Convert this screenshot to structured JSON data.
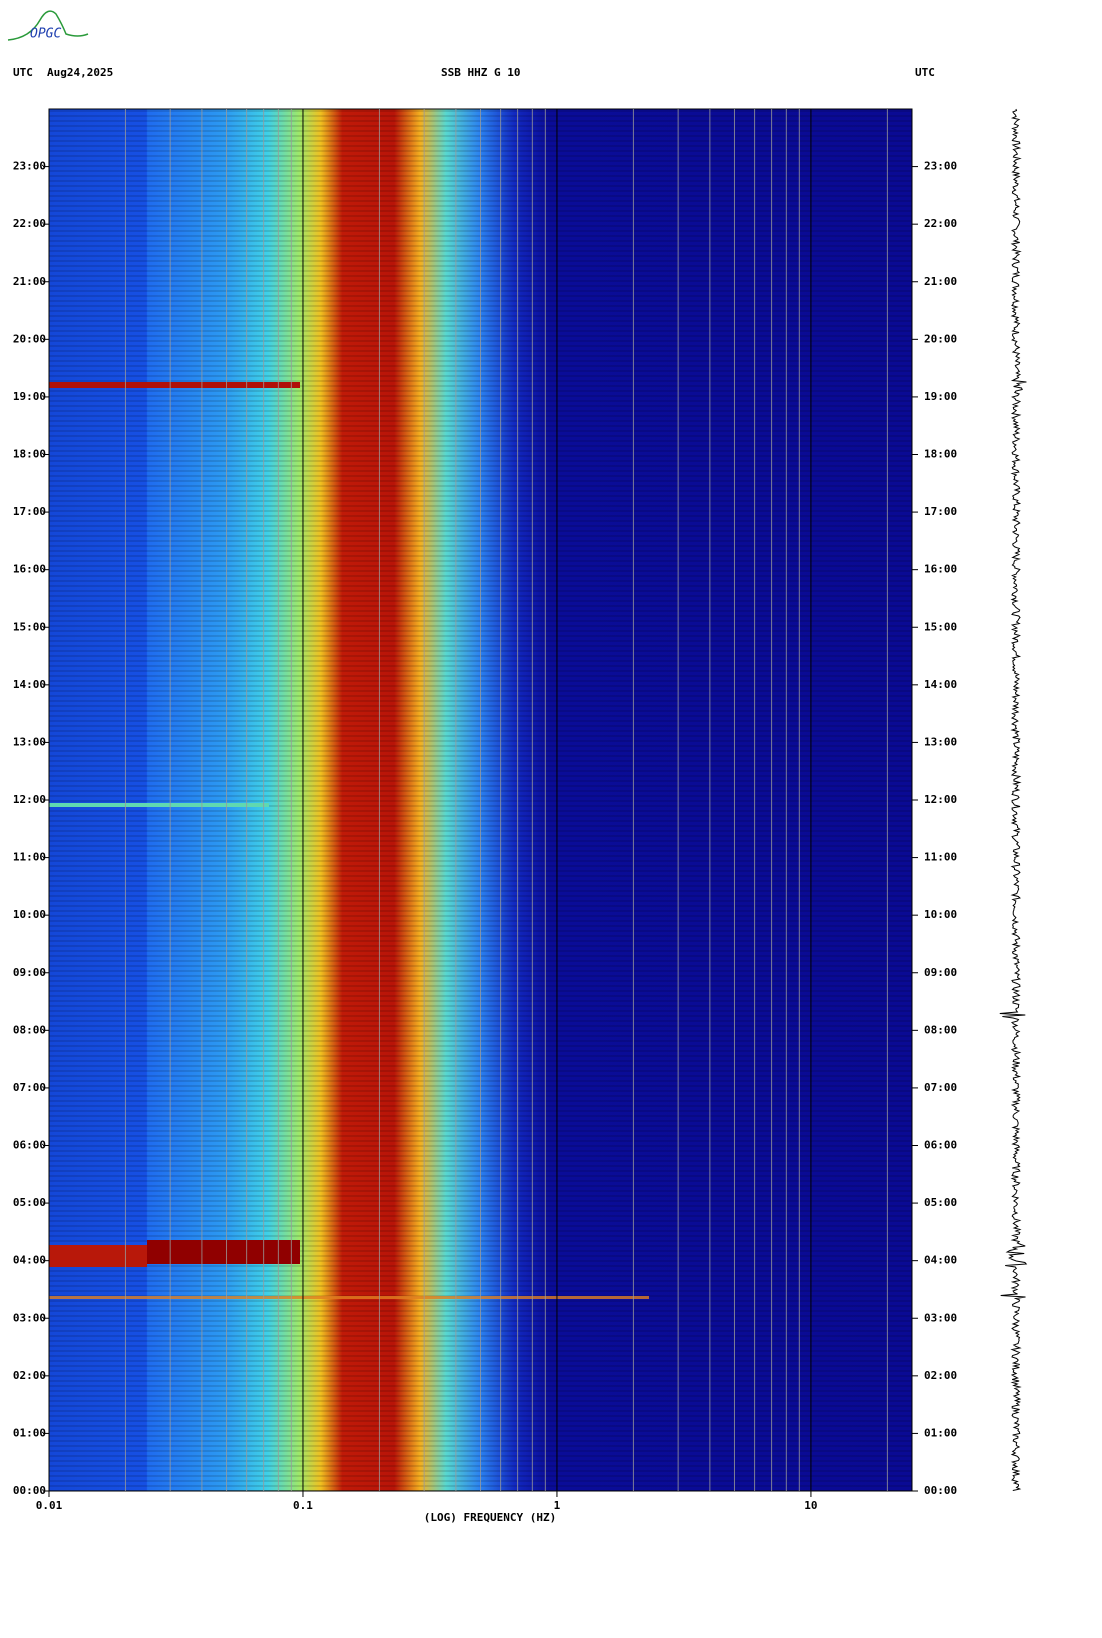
{
  "logo": "OPGC",
  "header": {
    "left": "UTC",
    "date": "Aug24,2025",
    "right": "UTC"
  },
  "chart_data": {
    "type": "spectrogram",
    "title": "SSB HHZ G 10",
    "xlabel": "(LOG) FREQUENCY (HZ)",
    "xscale": "log",
    "xlim": [
      0.01,
      25
    ],
    "xticks": [
      0.01,
      0.1,
      1,
      10
    ],
    "xgrid": [
      0.02,
      0.03,
      0.04,
      0.05,
      0.06,
      0.07,
      0.08,
      0.09,
      0.2,
      0.3,
      0.4,
      0.5,
      0.6,
      0.7,
      0.8,
      0.9,
      2,
      3,
      4,
      5,
      6,
      7,
      8,
      9,
      20
    ],
    "ylim": [
      0,
      24
    ],
    "yticks": [
      {
        "value": 0,
        "label": "00:00"
      },
      {
        "value": 1,
        "label": "01:00"
      },
      {
        "value": 2,
        "label": "02:00"
      },
      {
        "value": 3,
        "label": "03:00"
      },
      {
        "value": 4,
        "label": "04:00"
      },
      {
        "value": 5,
        "label": "05:00"
      },
      {
        "value": 6,
        "label": "06:00"
      },
      {
        "value": 7,
        "label": "07:00"
      },
      {
        "value": 8,
        "label": "08:00"
      },
      {
        "value": 9,
        "label": "09:00"
      },
      {
        "value": 10,
        "label": "10:00"
      },
      {
        "value": 11,
        "label": "11:00"
      },
      {
        "value": 12,
        "label": "12:00"
      },
      {
        "value": 13,
        "label": "13:00"
      },
      {
        "value": 14,
        "label": "14:00"
      },
      {
        "value": 15,
        "label": "15:00"
      },
      {
        "value": 16,
        "label": "16:00"
      },
      {
        "value": 17,
        "label": "17:00"
      },
      {
        "value": 18,
        "label": "18:00"
      },
      {
        "value": 19,
        "label": "19:00"
      },
      {
        "value": 20,
        "label": "20:00"
      },
      {
        "value": 21,
        "label": "21:00"
      },
      {
        "value": 22,
        "label": "22:00"
      },
      {
        "value": 23,
        "label": "23:00"
      }
    ]
  }
}
